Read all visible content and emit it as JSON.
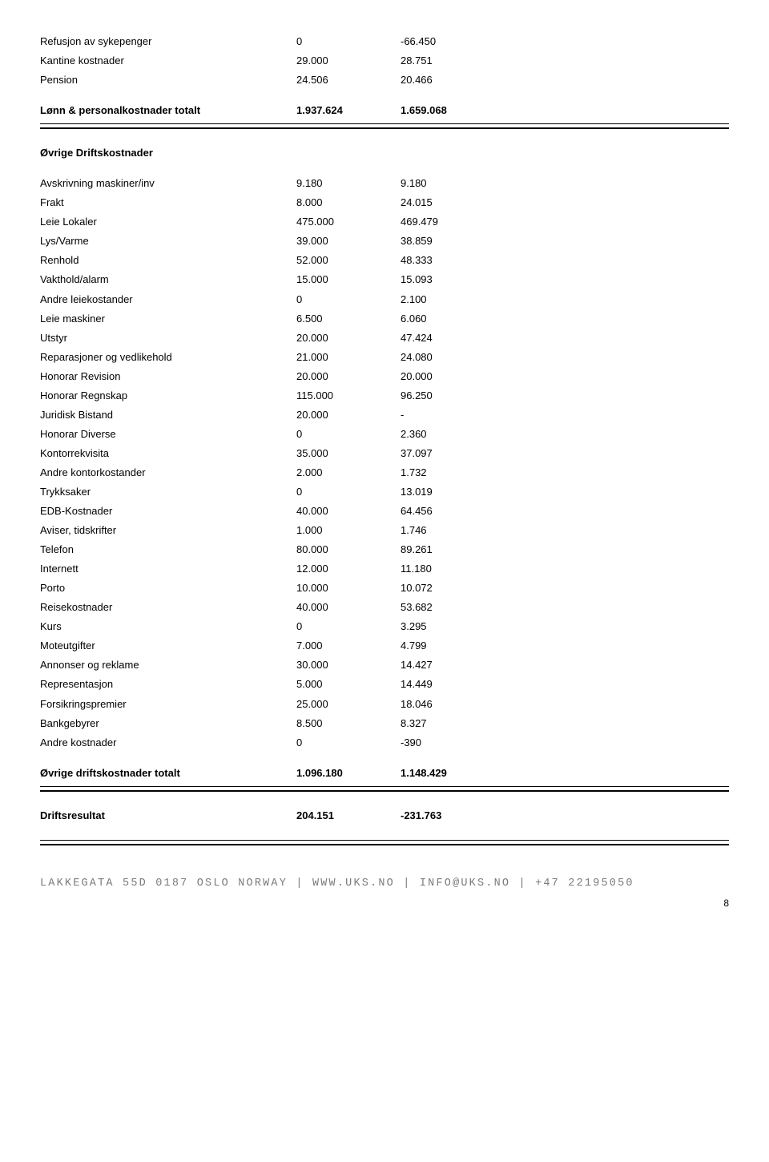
{
  "section1": {
    "rows": [
      {
        "label": "Refusjon av sykepenger",
        "c1": "0",
        "c2": "-66.450"
      },
      {
        "label": "Kantine kostnader",
        "c1": "29.000",
        "c2": "28.751"
      },
      {
        "label": "Pension",
        "c1": "24.506",
        "c2": "20.466"
      }
    ],
    "total": {
      "label": "Lønn & personalkostnader totalt",
      "c1": "1.937.624",
      "c2": "1.659.068"
    }
  },
  "section2": {
    "title": "Øvrige Driftskostnader",
    "rows": [
      {
        "label": "Avskrivning maskiner/inv",
        "c1": "9.180",
        "c2": "9.180"
      },
      {
        "label": "Frakt",
        "c1": "8.000",
        "c2": "24.015"
      },
      {
        "label": "Leie Lokaler",
        "c1": "475.000",
        "c2": "469.479"
      },
      {
        "label": "Lys/Varme",
        "c1": "39.000",
        "c2": "38.859"
      },
      {
        "label": "Renhold",
        "c1": "52.000",
        "c2": "48.333"
      },
      {
        "label": "Vakthold/alarm",
        "c1": "15.000",
        "c2": "15.093"
      },
      {
        "label": "Andre leiekostander",
        "c1": "0",
        "c2": "2.100"
      },
      {
        "label": "Leie maskiner",
        "c1": "6.500",
        "c2": "6.060"
      },
      {
        "label": "Utstyr",
        "c1": "20.000",
        "c2": "47.424"
      },
      {
        "label": "Reparasjoner og vedlikehold",
        "c1": "21.000",
        "c2": "24.080"
      },
      {
        "label": "Honorar Revision",
        "c1": "20.000",
        "c2": "20.000"
      },
      {
        "label": "Honorar Regnskap",
        "c1": "115.000",
        "c2": "96.250"
      },
      {
        "label": "Juridisk Bistand",
        "c1": "20.000",
        "c2": "-"
      },
      {
        "label": "Honorar Diverse",
        "c1": "0",
        "c2": "2.360"
      },
      {
        "label": "Kontorrekvisita",
        "c1": "35.000",
        "c2": "37.097"
      },
      {
        "label": "Andre kontorkostander",
        "c1": "2.000",
        "c2": "1.732"
      },
      {
        "label": "Trykksaker",
        "c1": "0",
        "c2": "13.019"
      },
      {
        "label": "EDB-Kostnader",
        "c1": "40.000",
        "c2": "64.456"
      },
      {
        "label": "Aviser, tidskrifter",
        "c1": "1.000",
        "c2": "1.746"
      },
      {
        "label": "Telefon",
        "c1": "80.000",
        "c2": "89.261"
      },
      {
        "label": "Internett",
        "c1": "12.000",
        "c2": "11.180"
      },
      {
        "label": "Porto",
        "c1": "10.000",
        "c2": "10.072"
      },
      {
        "label": "Reisekostnader",
        "c1": "40.000",
        "c2": "53.682"
      },
      {
        "label": "Kurs",
        "c1": "0",
        "c2": "3.295"
      },
      {
        "label": "Moteutgifter",
        "c1": "7.000",
        "c2": "4.799"
      },
      {
        "label": "Annonser og reklame",
        "c1": "30.000",
        "c2": "14.427"
      },
      {
        "label": "Representasjon",
        "c1": "5.000",
        "c2": "14.449"
      },
      {
        "label": "Forsikringspremier",
        "c1": "25.000",
        "c2": "18.046"
      },
      {
        "label": "Bankgebyrer",
        "c1": "8.500",
        "c2": "8.327"
      },
      {
        "label": "Andre kostnader",
        "c1": "0",
        "c2": "-390"
      }
    ],
    "total": {
      "label": "Øvrige driftskostnader totalt",
      "c1": "1.096.180",
      "c2": "1.148.429"
    }
  },
  "result": {
    "label": "Driftsresultat",
    "c1": "204.151",
    "c2": "-231.763"
  },
  "footer": "LAKKEGATA 55D 0187 OSLO NORWAY | WWW.UKS.NO | INFO@UKS.NO | +47 22195050",
  "page": "8"
}
